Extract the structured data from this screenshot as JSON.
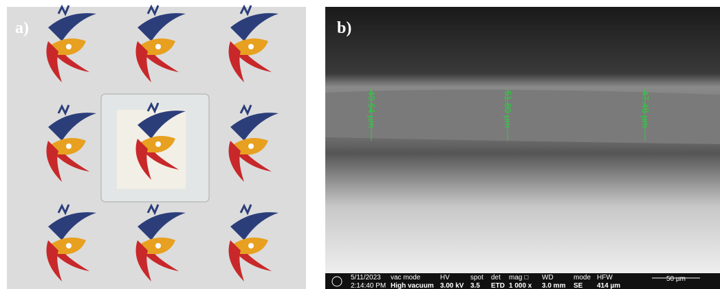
{
  "panels": [
    {
      "label": "a)"
    },
    {
      "label": "b)",
      "measurements": [
        "49.64 µm",
        "51.80 µm",
        "47.48 µm"
      ],
      "info_bar": {
        "date": "5/11/2023",
        "time": "2:14:40 PM",
        "fields": [
          {
            "name": "vac mode",
            "value": "High vacuum"
          },
          {
            "name": "HV",
            "value": "3.00 kV"
          },
          {
            "name": "spot",
            "value": "3.5"
          },
          {
            "name": "det",
            "value": "ETD"
          },
          {
            "name": "mag □",
            "value": "1 000 x"
          },
          {
            "name": "WD",
            "value": "3.0 mm"
          },
          {
            "name": "mode",
            "value": "SE"
          },
          {
            "name": "HFW",
            "value": "414 µm"
          }
        ],
        "scale_bar": "50 µm"
      }
    }
  ]
}
